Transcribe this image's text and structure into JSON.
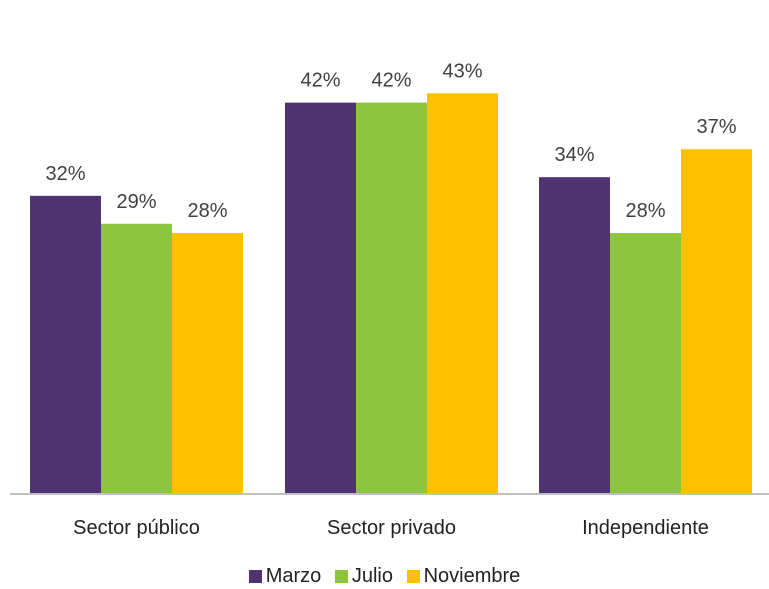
{
  "chart_data": {
    "type": "bar",
    "categories": [
      "Sector público",
      "Sector privado",
      "Independiente"
    ],
    "series": [
      {
        "name": "Marzo",
        "values": [
          32,
          42,
          34
        ],
        "labels": [
          "32%",
          "42%",
          "34%"
        ],
        "color": "#4f3270"
      },
      {
        "name": "Julio",
        "values": [
          29,
          42,
          28
        ],
        "labels": [
          "29%",
          "42%",
          "28%"
        ],
        "color": "#8cc43e"
      },
      {
        "name": "Noviembre",
        "values": [
          28,
          43,
          37
        ],
        "labels": [
          "28%",
          "43%",
          "37%"
        ],
        "color": "#ffc000"
      }
    ],
    "title": "",
    "xlabel": "",
    "ylabel": "",
    "ylim": [
      0,
      44
    ],
    "grid": false,
    "legend_position": "bottom",
    "colors": {
      "axis": "#bfbfbf",
      "text": "#404040"
    }
  }
}
